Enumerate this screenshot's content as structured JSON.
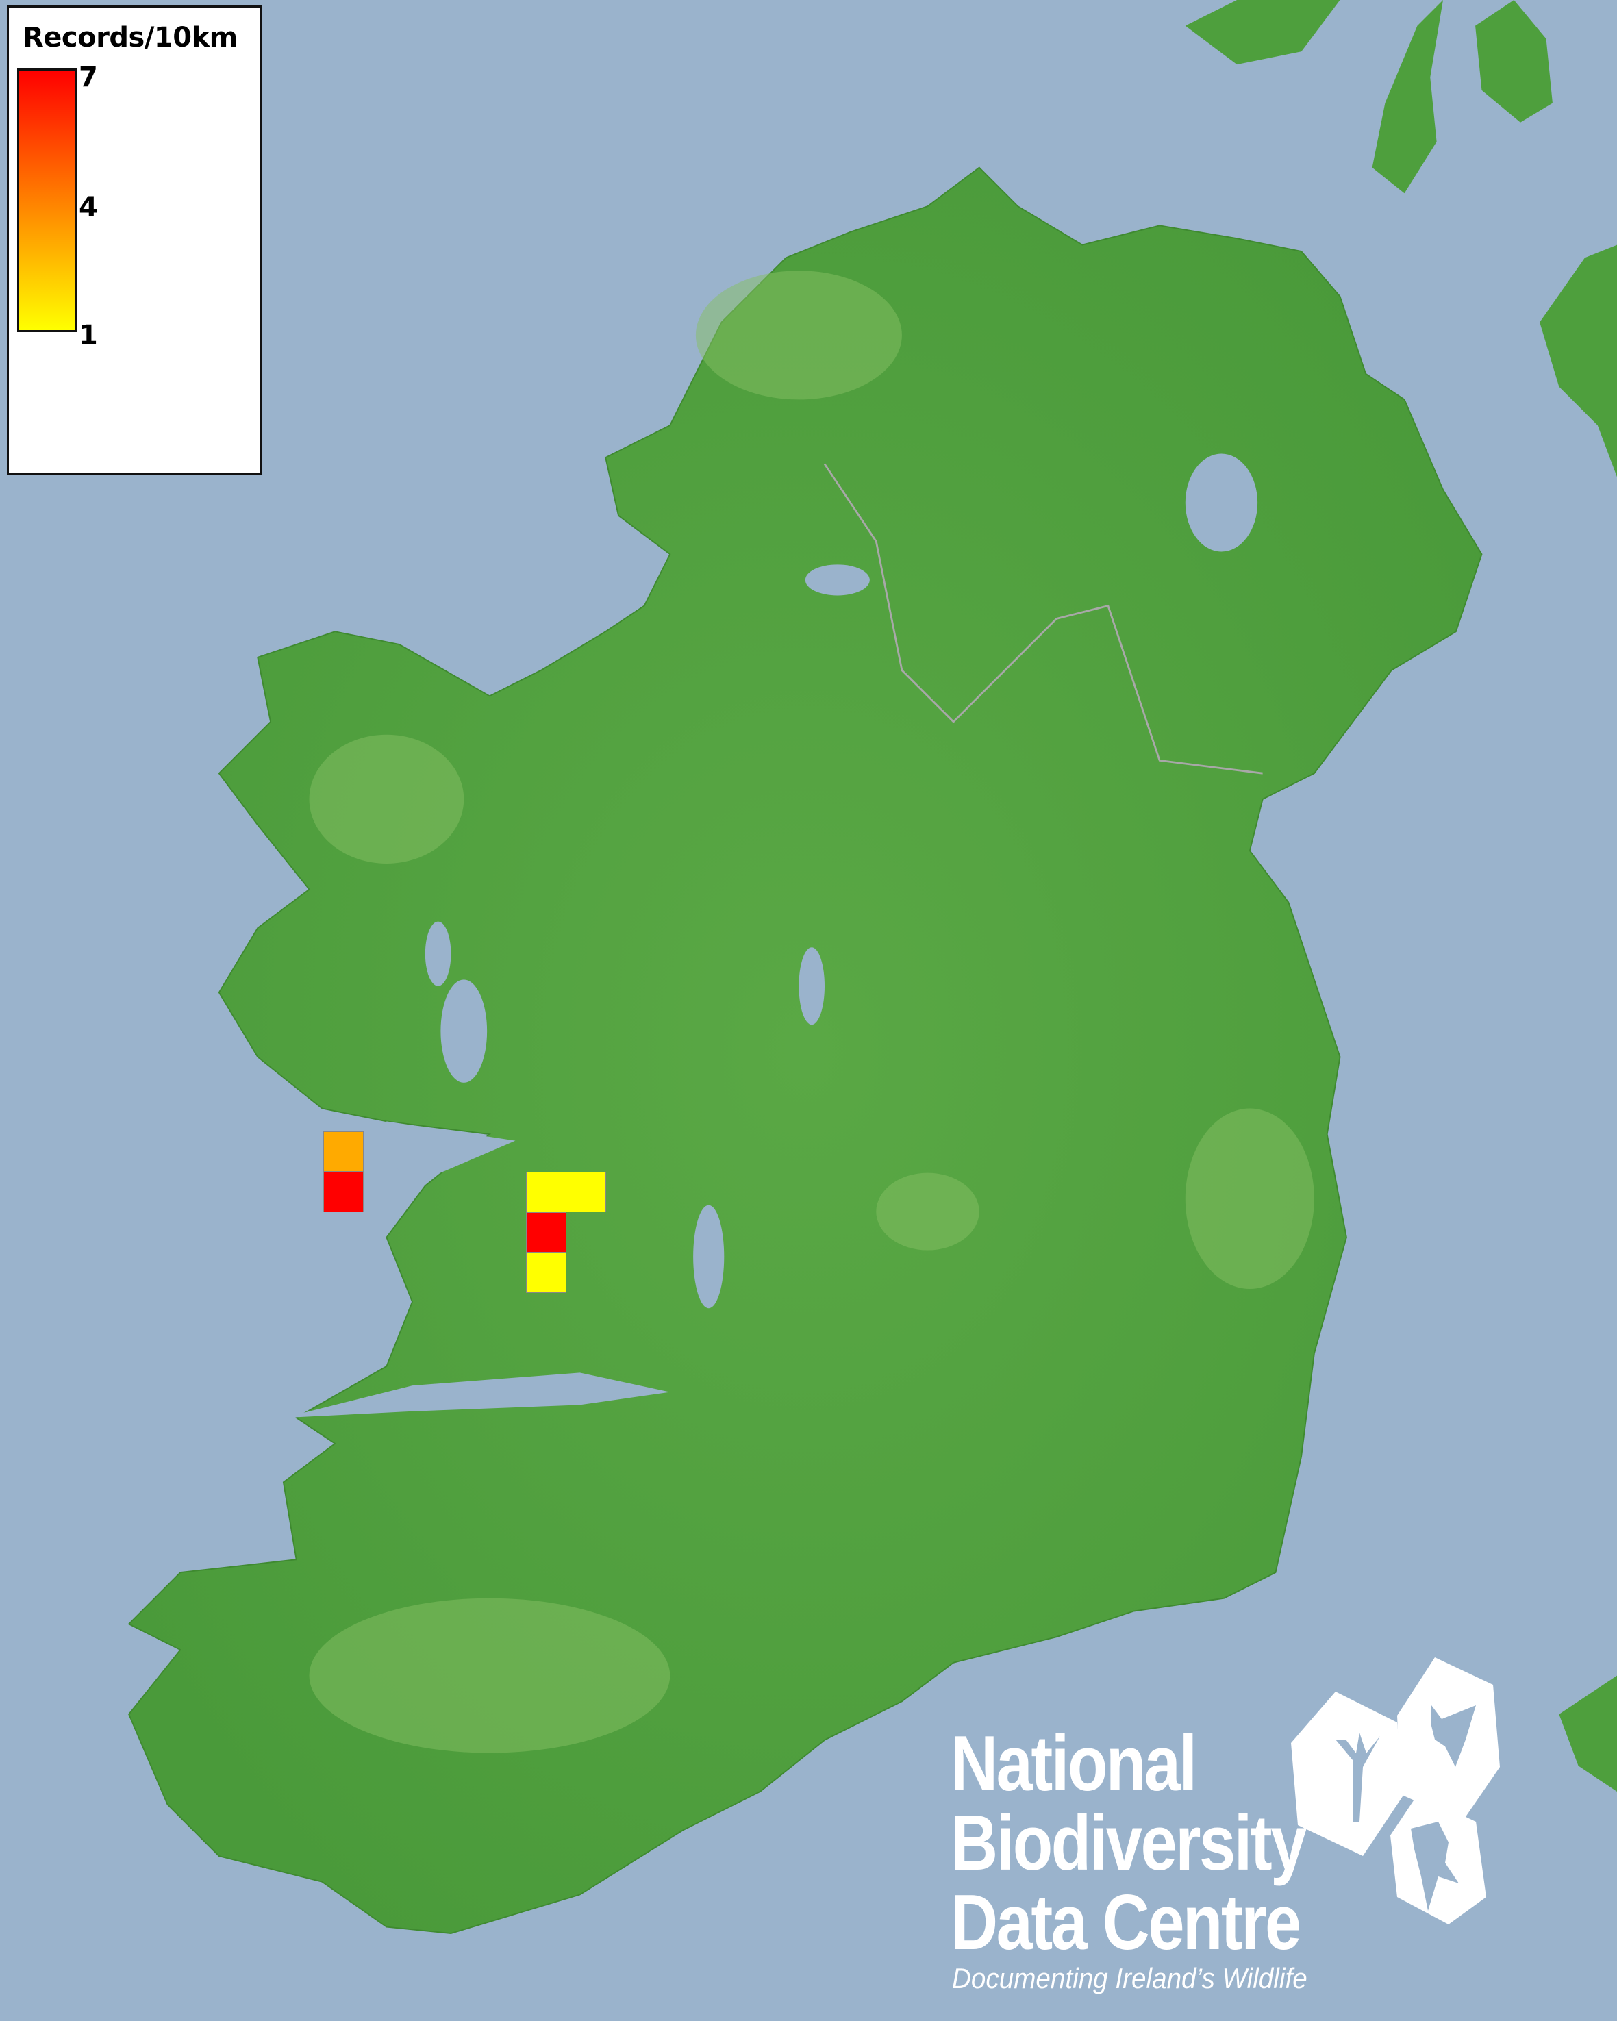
{
  "legend": {
    "title": "Records/10km",
    "ticks": [
      "7",
      "4",
      "1"
    ],
    "gradient_colors": {
      "min": "#ffff00",
      "mid": "#ff8000",
      "max": "#ff0000"
    },
    "range": [
      1,
      7
    ]
  },
  "colors": {
    "sea": "#9ab3cc",
    "land": "#4e9f3d",
    "land_highlight": "#7fbf5a"
  },
  "records": [
    {
      "value": 3,
      "color": "#ffaa00"
    },
    {
      "value": 7,
      "color": "#ff0000"
    },
    {
      "value": 1,
      "color": "#ffff00"
    },
    {
      "value": 1,
      "color": "#ffff00"
    },
    {
      "value": 7,
      "color": "#ff0000"
    },
    {
      "value": 1,
      "color": "#ffff00"
    }
  ],
  "logo": {
    "line1": "National",
    "line2": "Biodiversity",
    "line3": "Data Centre",
    "tagline": "Documenting Ireland’s Wildlife",
    "icons": [
      "plant-icon",
      "butterfly-icon",
      "seahorse-icon"
    ]
  }
}
